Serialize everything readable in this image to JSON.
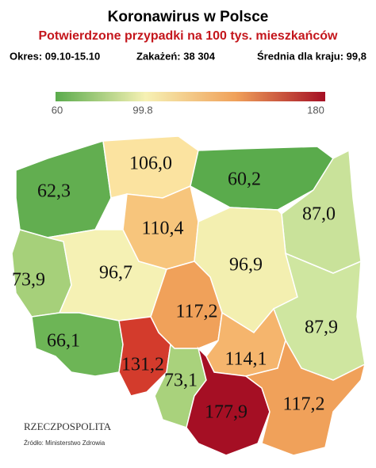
{
  "header": {
    "title": "Koronawirus w Polsce",
    "subtitle": "Potwierdzone przypadki na 100 tys. mieszkańców",
    "info": [
      "Okres: 09.10-15.10",
      "Zakażeń: 38 304",
      "Średnia dla kraju: 99,8"
    ]
  },
  "legend": {
    "labels": [
      "60",
      "99.8",
      "180"
    ],
    "colors": [
      "#5aab4c",
      "#f6f1b4",
      "#f0a15a",
      "#a50f24"
    ]
  },
  "regions": [
    {
      "label": "62,3",
      "color": "#62ae50"
    },
    {
      "label": "106,0",
      "color": "#fbe3a0"
    },
    {
      "label": "60,2",
      "color": "#5aab4c"
    },
    {
      "label": "87,0",
      "color": "#c9e29a"
    },
    {
      "label": "73,9",
      "color": "#a6d07a"
    },
    {
      "label": "96,7",
      "color": "#f5f1b4"
    },
    {
      "label": "110,4",
      "color": "#f7c57c"
    },
    {
      "label": "96,9",
      "color": "#f3efb0"
    },
    {
      "label": "117,2",
      "color": "#f0a15a"
    },
    {
      "label": "87,9",
      "color": "#cfe6a0"
    },
    {
      "label": "66,1",
      "color": "#6db556"
    },
    {
      "label": "131,2",
      "color": "#d33b2c"
    },
    {
      "label": "73,1",
      "color": "#a9d27c"
    },
    {
      "label": "114,1",
      "color": "#f5b56d"
    },
    {
      "label": "177,9",
      "color": "#a50f24"
    },
    {
      "label": "117,2",
      "color": "#f0a15a"
    }
  ],
  "footer": {
    "logo": "RZECZPOSPOLITA",
    "source": "Źródło: Ministerstwo Zdrowia"
  }
}
